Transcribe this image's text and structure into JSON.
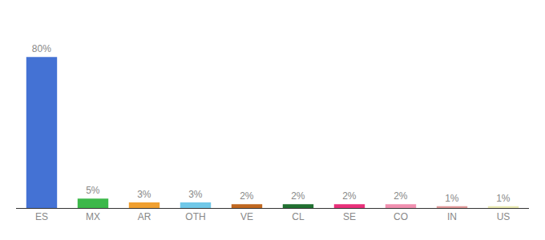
{
  "chart_data": {
    "type": "bar",
    "categories": [
      "ES",
      "MX",
      "AR",
      "OTH",
      "VE",
      "CL",
      "SE",
      "CO",
      "IN",
      "US"
    ],
    "values": [
      80,
      5,
      3,
      3,
      2,
      2,
      2,
      2,
      1,
      1
    ],
    "value_labels": [
      "80%",
      "5%",
      "3%",
      "3%",
      "2%",
      "2%",
      "2%",
      "2%",
      "1%",
      "1%"
    ],
    "data_labels": true,
    "colors": [
      "#4472d4",
      "#3cb84a",
      "#f0a030",
      "#70c8e8",
      "#c06820",
      "#207030",
      "#e8307a",
      "#f090b0",
      "#e09898",
      "#e8e8b0"
    ],
    "ylim": [
      0,
      100
    ],
    "grid": false,
    "tick_labels": "x"
  }
}
